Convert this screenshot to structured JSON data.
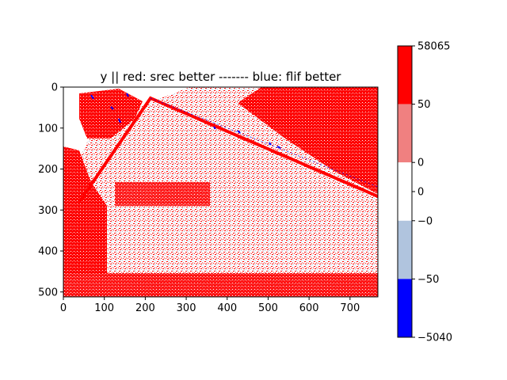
{
  "chart_data": {
    "type": "heatmap",
    "title": "y || red: srec better ------- blue: flif better",
    "xlabel": "",
    "ylabel": "",
    "image_extent": {
      "width": 768,
      "height": 512
    },
    "xlim": [
      0,
      768
    ],
    "ylim": [
      512,
      0
    ],
    "x_ticks": [
      0,
      100,
      200,
      300,
      400,
      500,
      600,
      700
    ],
    "y_ticks": [
      0,
      100,
      200,
      300,
      400,
      500
    ],
    "grid": false,
    "image_description_colors": {
      "srec_better": "#ff0000",
      "srec_slightly_better": "#f08080",
      "equal": "#ffffff",
      "flif_slightly_better": "#b0c4de",
      "flif_better": "#0000ff"
    },
    "colorbar": {
      "orientation": "vertical",
      "placement": "right",
      "min_value": -5040,
      "max_value": 58065,
      "bands": [
        {
          "from": -5040,
          "to": -50,
          "color": "#0000ff"
        },
        {
          "from": -50,
          "to": 0,
          "color": "#b0c4de"
        },
        {
          "from": 0,
          "to": 0,
          "color": "#ffffff"
        },
        {
          "from": 0,
          "to": 50,
          "color": "#f08080"
        },
        {
          "from": 50,
          "to": 58065,
          "color": "#ff0000"
        }
      ],
      "tick_labels": [
        "58065",
        "50",
        "0",
        "0",
        "−0",
        "−50",
        "−5040"
      ]
    }
  }
}
